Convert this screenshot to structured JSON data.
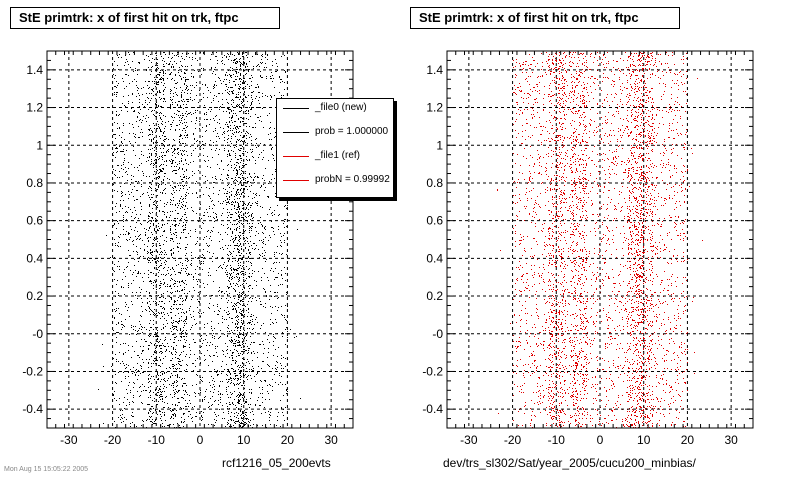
{
  "panels": [
    {
      "title": "StE primtrk: x of first hit on trk, ftpc",
      "xlabel": "rcf1216_05_200evts",
      "color": "#000000"
    },
    {
      "title": "StE primtrk: x of first hit on trk, ftpc",
      "xlabel": "dev/trs_sl302/Sat/year_2005/cucu200_minbias/",
      "color": "#e00000"
    }
  ],
  "legend": {
    "entries": [
      {
        "label": "_file0 (new)",
        "color": "#000000"
      },
      {
        "label": "prob = 1.000000",
        "color": "#000000"
      },
      {
        "label": "_file1 (ref)",
        "color": "#e00000"
      },
      {
        "label": "probN = 0.99992",
        "color": "#e00000"
      }
    ]
  },
  "footnote": "Mon Aug 15 15:05:22 2005",
  "chart_data": [
    {
      "type": "scatter",
      "title": "StE primtrk: x of first hit on trk, ftpc",
      "xlabel": "rcf1216_05_200evts",
      "ylabel": "",
      "xlim": [
        -35,
        35
      ],
      "ylim": [
        -0.5,
        1.5
      ],
      "x_ticks": [
        -30,
        -20,
        -10,
        0,
        10,
        20,
        30
      ],
      "y_ticks": [
        -0.4,
        -0.2,
        0,
        0.2,
        0.4,
        0.6,
        0.8,
        1,
        1.2,
        1.4
      ],
      "y_tick_labels": [
        "-0.4",
        "-0.2",
        "-0",
        "0.2",
        "0.4",
        "0.6",
        "0.8",
        "1",
        "1.2",
        "1.4"
      ],
      "x_tick_labels": [
        "-30",
        "-20",
        "-10",
        "0",
        "10",
        "20",
        "30"
      ],
      "grid": true,
      "x_distribution": {
        "min": -20,
        "max": 20,
        "dense_bands": [
          -10,
          -5,
          8,
          10
        ]
      },
      "color": "#000000",
      "legend": "top-right"
    },
    {
      "type": "scatter",
      "title": "StE primtrk: x of first hit on trk, ftpc",
      "xlabel": "dev/trs_sl302/Sat/year_2005/cucu200_minbias/",
      "ylabel": "",
      "xlim": [
        -35,
        35
      ],
      "ylim": [
        -0.5,
        1.5
      ],
      "x_ticks": [
        -30,
        -20,
        -10,
        0,
        10,
        20,
        30
      ],
      "y_ticks": [
        -0.4,
        -0.2,
        0,
        0.2,
        0.4,
        0.6,
        0.8,
        1,
        1.2,
        1.4
      ],
      "y_tick_labels": [
        "-0.4",
        "-0.2",
        "-0",
        "0.2",
        "0.4",
        "0.6",
        "0.8",
        "1",
        "1.2",
        "1.4"
      ],
      "x_tick_labels": [
        "-30",
        "-20",
        "-10",
        "0",
        "10",
        "20",
        "30"
      ],
      "grid": true,
      "x_distribution": {
        "min": -20,
        "max": 20,
        "dense_bands": [
          -10,
          -5,
          8,
          10
        ]
      },
      "color": "#e00000"
    }
  ]
}
